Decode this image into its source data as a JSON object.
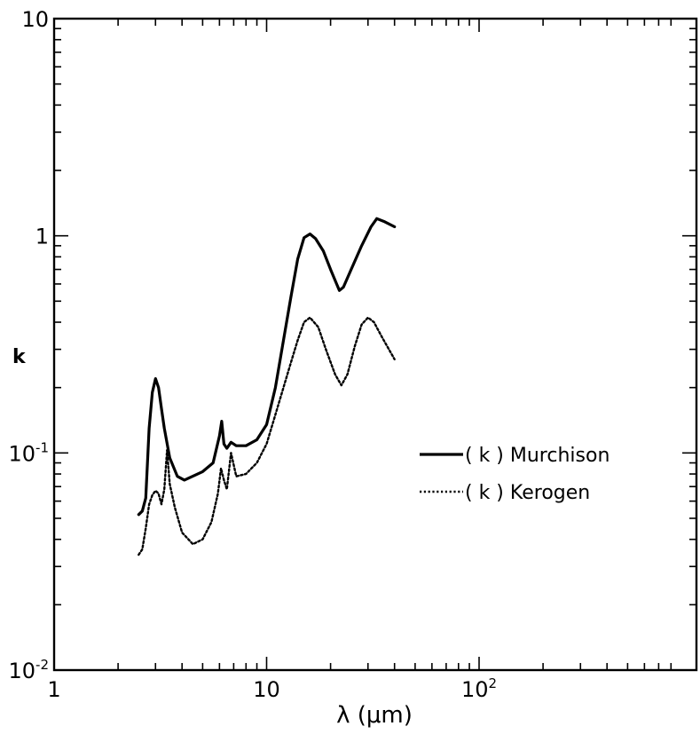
{
  "chart_data": {
    "type": "line",
    "title": "",
    "xlabel": "λ (μm)",
    "ylabel": "k",
    "xscale": "log",
    "yscale": "log",
    "xlim": [
      1,
      800
    ],
    "ylim": [
      0.01,
      10
    ],
    "xticks": [
      {
        "value": 1,
        "label": "1"
      },
      {
        "value": 10,
        "label": "10"
      },
      {
        "value": 100,
        "base": "10",
        "exp": "2"
      }
    ],
    "yticks": [
      {
        "value": 0.01,
        "base": "10",
        "exp": "-2"
      },
      {
        "value": 0.1,
        "base": "10",
        "exp": "-1"
      },
      {
        "value": 1,
        "label": "1"
      },
      {
        "value": 10,
        "label": "10"
      }
    ],
    "grid": false,
    "legend_position": "right",
    "series": [
      {
        "name": "( k ) Murchison",
        "style": "solid",
        "color": "#000000",
        "points": [
          [
            2.5,
            0.052
          ],
          [
            2.6,
            0.054
          ],
          [
            2.7,
            0.062
          ],
          [
            2.8,
            0.13
          ],
          [
            2.9,
            0.19
          ],
          [
            3.0,
            0.22
          ],
          [
            3.1,
            0.2
          ],
          [
            3.2,
            0.16
          ],
          [
            3.3,
            0.13
          ],
          [
            3.5,
            0.095
          ],
          [
            3.8,
            0.078
          ],
          [
            4.1,
            0.075
          ],
          [
            5.0,
            0.082
          ],
          [
            5.6,
            0.09
          ],
          [
            6.0,
            0.12
          ],
          [
            6.15,
            0.14
          ],
          [
            6.3,
            0.11
          ],
          [
            6.5,
            0.105
          ],
          [
            6.8,
            0.112
          ],
          [
            7.2,
            0.108
          ],
          [
            8.0,
            0.108
          ],
          [
            9.0,
            0.115
          ],
          [
            10.0,
            0.135
          ],
          [
            11.0,
            0.2
          ],
          [
            12.0,
            0.33
          ],
          [
            13.0,
            0.52
          ],
          [
            14.0,
            0.78
          ],
          [
            15.0,
            0.98
          ],
          [
            16.0,
            1.02
          ],
          [
            17.0,
            0.97
          ],
          [
            18.5,
            0.85
          ],
          [
            20.0,
            0.7
          ],
          [
            22.0,
            0.56
          ],
          [
            23.0,
            0.58
          ],
          [
            25.0,
            0.7
          ],
          [
            28.0,
            0.9
          ],
          [
            31.0,
            1.1
          ],
          [
            33.0,
            1.2
          ],
          [
            36.0,
            1.16
          ],
          [
            40.0,
            1.1
          ]
        ]
      },
      {
        "name": "( k ) Kerogen",
        "style": "dotted",
        "color": "#000000",
        "points": [
          [
            2.5,
            0.034
          ],
          [
            2.6,
            0.036
          ],
          [
            2.7,
            0.045
          ],
          [
            2.8,
            0.058
          ],
          [
            2.9,
            0.064
          ],
          [
            3.0,
            0.067
          ],
          [
            3.1,
            0.065
          ],
          [
            3.2,
            0.058
          ],
          [
            3.3,
            0.068
          ],
          [
            3.4,
            0.103
          ],
          [
            3.5,
            0.072
          ],
          [
            3.7,
            0.056
          ],
          [
            4.0,
            0.043
          ],
          [
            4.5,
            0.038
          ],
          [
            5.0,
            0.04
          ],
          [
            5.5,
            0.048
          ],
          [
            5.9,
            0.065
          ],
          [
            6.1,
            0.085
          ],
          [
            6.3,
            0.075
          ],
          [
            6.5,
            0.068
          ],
          [
            6.8,
            0.1
          ],
          [
            7.2,
            0.078
          ],
          [
            8.0,
            0.08
          ],
          [
            9.0,
            0.09
          ],
          [
            10.0,
            0.11
          ],
          [
            11.0,
            0.15
          ],
          [
            12.0,
            0.2
          ],
          [
            13.0,
            0.26
          ],
          [
            14.0,
            0.33
          ],
          [
            15.0,
            0.4
          ],
          [
            16.0,
            0.42
          ],
          [
            17.5,
            0.38
          ],
          [
            19.0,
            0.3
          ],
          [
            21.0,
            0.23
          ],
          [
            22.5,
            0.205
          ],
          [
            24.0,
            0.23
          ],
          [
            26.0,
            0.31
          ],
          [
            28.0,
            0.39
          ],
          [
            30.0,
            0.42
          ],
          [
            32.0,
            0.4
          ],
          [
            35.0,
            0.34
          ],
          [
            40.0,
            0.27
          ]
        ]
      }
    ]
  }
}
